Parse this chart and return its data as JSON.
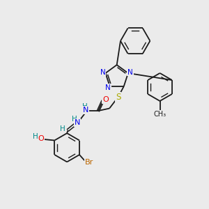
{
  "background_color": "#ebebeb",
  "bond_color": "#1a1a1a",
  "atom_colors": {
    "N": "#0000ee",
    "O": "#ee0000",
    "S": "#aaaa00",
    "Br": "#bb6600",
    "H": "#008888",
    "C": "#1a1a1a"
  },
  "figsize": [
    3.0,
    3.0
  ],
  "dpi": 100,
  "xlim": [
    0,
    10
  ],
  "ylim": [
    0,
    10
  ]
}
